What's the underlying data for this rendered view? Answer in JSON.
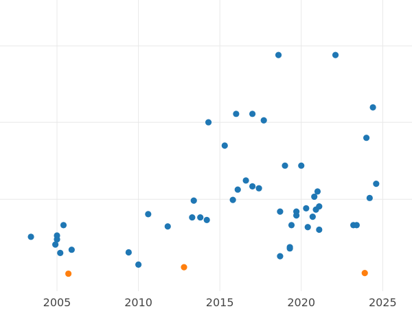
{
  "chart_data": {
    "type": "scatter",
    "title": "",
    "xlabel": "",
    "ylabel": "",
    "xlim": [
      2001.5,
      2026.8
    ],
    "ylim": [
      0,
      450
    ],
    "grid": true,
    "x_ticks": [
      2005,
      2010,
      2015,
      2020,
      2025
    ],
    "x_tick_labels": [
      "2005",
      "2010",
      "2015",
      "2020",
      "2025"
    ],
    "y_ticks": [
      142,
      261,
      379
    ],
    "legend": "none",
    "series": [
      {
        "color": "#1f77b4",
        "points": [
          [
            2003.4,
            84
          ],
          [
            2005.0,
            86
          ],
          [
            2005.0,
            80
          ],
          [
            2004.9,
            72
          ],
          [
            2005.2,
            59
          ],
          [
            2005.4,
            102
          ],
          [
            2005.9,
            64
          ],
          [
            2009.4,
            60
          ],
          [
            2010.0,
            41
          ],
          [
            2010.6,
            119
          ],
          [
            2011.8,
            100
          ],
          [
            2013.3,
            114
          ],
          [
            2013.4,
            140
          ],
          [
            2013.8,
            114
          ],
          [
            2014.2,
            110
          ],
          [
            2014.3,
            261
          ],
          [
            2015.3,
            225
          ],
          [
            2015.8,
            141
          ],
          [
            2016.0,
            274
          ],
          [
            2016.1,
            157
          ],
          [
            2016.6,
            171
          ],
          [
            2017.0,
            162
          ],
          [
            2017.0,
            274
          ],
          [
            2017.4,
            159
          ],
          [
            2017.7,
            264
          ],
          [
            2018.6,
            365
          ],
          [
            2018.7,
            54
          ],
          [
            2018.7,
            123
          ],
          [
            2019.0,
            194
          ],
          [
            2019.3,
            68
          ],
          [
            2019.3,
            66
          ],
          [
            2019.4,
            102
          ],
          [
            2019.7,
            117
          ],
          [
            2019.7,
            123
          ],
          [
            2020.0,
            194
          ],
          [
            2020.3,
            128
          ],
          [
            2020.4,
            99
          ],
          [
            2020.7,
            115
          ],
          [
            2020.8,
            146
          ],
          [
            2020.9,
            126
          ],
          [
            2021.0,
            154
          ],
          [
            2021.1,
            131
          ],
          [
            2021.1,
            95
          ],
          [
            2022.1,
            365
          ],
          [
            2023.2,
            102
          ],
          [
            2023.4,
            102
          ],
          [
            2024.0,
            237
          ],
          [
            2024.2,
            144
          ],
          [
            2024.4,
            284
          ],
          [
            2024.6,
            166
          ]
        ]
      },
      {
        "color": "#ff7f0e",
        "points": [
          [
            2005.7,
            27
          ],
          [
            2012.8,
            37
          ],
          [
            2023.9,
            28
          ]
        ]
      }
    ]
  }
}
